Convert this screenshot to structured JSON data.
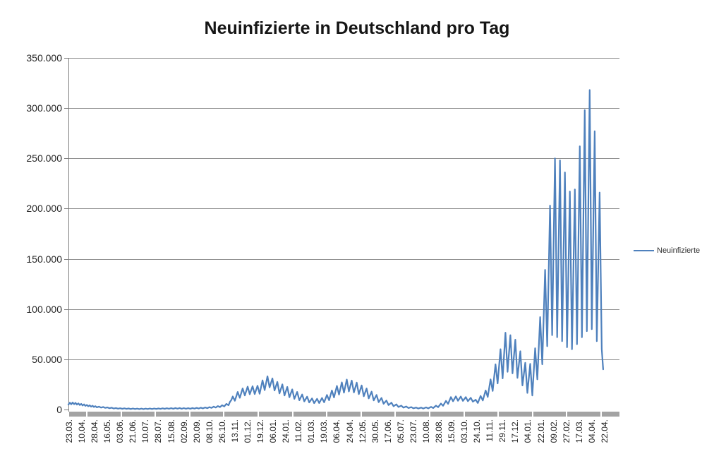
{
  "chart": {
    "title": "Neuinfizierte in Deutschland pro Tag",
    "legend": {
      "label": "Neuinfizierte"
    }
  },
  "chart_data": {
    "type": "line",
    "title": "Neuinfizierte in Deutschland pro Tag",
    "series_name": "Neuinfizierte",
    "xlabel": "",
    "ylabel": "",
    "ylim": [
      0,
      350000
    ],
    "grid": true,
    "legend_position": "right",
    "x_tick_step_days": 18,
    "axis_days": 778,
    "colors": {
      "line": "#4F81BD",
      "gridline": "#909090",
      "axis": "#808080",
      "axis_band": "#A3A3A3",
      "text": "#262626",
      "title_text": "#151515"
    },
    "y_ticks": [
      {
        "v": 0,
        "label": "0"
      },
      {
        "v": 50000,
        "label": "50.000"
      },
      {
        "v": 100000,
        "label": "100.000"
      },
      {
        "v": 150000,
        "label": "150.000"
      },
      {
        "v": 200000,
        "label": "200.000"
      },
      {
        "v": 250000,
        "label": "250.000"
      },
      {
        "v": 300000,
        "label": "300.000"
      },
      {
        "v": 350000,
        "label": "350.000"
      }
    ],
    "x_tick_labels": [
      "23.03.",
      "10.04.",
      "28.04.",
      "16.05.",
      "03.06.",
      "21.06.",
      "10.07.",
      "28.07.",
      "15.08.",
      "02.09.",
      "20.09.",
      "08.10.",
      "26.10.",
      "13.11.",
      "01.12.",
      "19.12.",
      "06.01.",
      "24.01.",
      "11.02.",
      "01.03.",
      "19.03.",
      "06.04.",
      "24.04.",
      "12.05.",
      "30.05.",
      "17.06.",
      "05.07.",
      "23.07.",
      "10.08.",
      "28.08.",
      "15.09.",
      "03.10.",
      "24.10.",
      "11.11.",
      "29.11.",
      "17.12.",
      "04.01.",
      "22.01.",
      "09.02.",
      "27.02.",
      "17.03.",
      "04.04.",
      "22.04."
    ],
    "points": [
      [
        0,
        5000
      ],
      [
        2,
        6800
      ],
      [
        4,
        5200
      ],
      [
        6,
        7000
      ],
      [
        8,
        5300
      ],
      [
        10,
        6600
      ],
      [
        12,
        4900
      ],
      [
        14,
        6100
      ],
      [
        16,
        4400
      ],
      [
        18,
        5600
      ],
      [
        20,
        4000
      ],
      [
        22,
        5100
      ],
      [
        24,
        3600
      ],
      [
        26,
        4600
      ],
      [
        28,
        3200
      ],
      [
        30,
        4200
      ],
      [
        32,
        2800
      ],
      [
        34,
        3800
      ],
      [
        36,
        2500
      ],
      [
        38,
        3400
      ],
      [
        40,
        2200
      ],
      [
        43,
        2900
      ],
      [
        46,
        1900
      ],
      [
        49,
        2500
      ],
      [
        52,
        1600
      ],
      [
        55,
        2100
      ],
      [
        58,
        1300
      ],
      [
        61,
        1800
      ],
      [
        64,
        1000
      ],
      [
        67,
        1500
      ],
      [
        70,
        850
      ],
      [
        73,
        1300
      ],
      [
        76,
        700
      ],
      [
        79,
        1200
      ],
      [
        82,
        600
      ],
      [
        85,
        1050
      ],
      [
        88,
        520
      ],
      [
        91,
        950
      ],
      [
        94,
        470
      ],
      [
        97,
        900
      ],
      [
        100,
        450
      ],
      [
        103,
        880
      ],
      [
        106,
        450
      ],
      [
        109,
        900
      ],
      [
        112,
        480
      ],
      [
        115,
        950
      ],
      [
        118,
        520
      ],
      [
        121,
        1000
      ],
      [
        124,
        570
      ],
      [
        127,
        1080
      ],
      [
        130,
        620
      ],
      [
        133,
        1160
      ],
      [
        136,
        680
      ],
      [
        139,
        1250
      ],
      [
        142,
        740
      ],
      [
        145,
        1350
      ],
      [
        148,
        800
      ],
      [
        151,
        1450
      ],
      [
        154,
        850
      ],
      [
        157,
        1500
      ],
      [
        160,
        800
      ],
      [
        163,
        1400
      ],
      [
        166,
        750
      ],
      [
        169,
        1350
      ],
      [
        172,
        800
      ],
      [
        175,
        1450
      ],
      [
        178,
        900
      ],
      [
        181,
        1600
      ],
      [
        184,
        1000
      ],
      [
        187,
        1800
      ],
      [
        190,
        1150
      ],
      [
        193,
        2050
      ],
      [
        196,
        1350
      ],
      [
        199,
        2400
      ],
      [
        202,
        1600
      ],
      [
        205,
        2850
      ],
      [
        208,
        1950
      ],
      [
        211,
        3450
      ],
      [
        214,
        2400
      ],
      [
        217,
        4300
      ],
      [
        220,
        3100
      ],
      [
        223,
        5600
      ],
      [
        226,
        4200
      ],
      [
        228,
        7600
      ],
      [
        230,
        9500
      ],
      [
        232,
        13000
      ],
      [
        235,
        8700
      ],
      [
        239,
        17500
      ],
      [
        242,
        11700
      ],
      [
        246,
        21000
      ],
      [
        249,
        14000
      ],
      [
        253,
        22800
      ],
      [
        256,
        15200
      ],
      [
        260,
        23200
      ],
      [
        263,
        15400
      ],
      [
        267,
        23600
      ],
      [
        270,
        15700
      ],
      [
        274,
        29000
      ],
      [
        277,
        19300
      ],
      [
        281,
        33000
      ],
      [
        284,
        22000
      ],
      [
        288,
        31000
      ],
      [
        291,
        19000
      ],
      [
        295,
        27500
      ],
      [
        298,
        16000
      ],
      [
        302,
        25000
      ],
      [
        305,
        14000
      ],
      [
        309,
        22500
      ],
      [
        312,
        12200
      ],
      [
        316,
        20000
      ],
      [
        319,
        10600
      ],
      [
        323,
        17500
      ],
      [
        326,
        9200
      ],
      [
        330,
        15000
      ],
      [
        333,
        8100
      ],
      [
        337,
        12800
      ],
      [
        340,
        7000
      ],
      [
        344,
        11000
      ],
      [
        347,
        6300
      ],
      [
        351,
        10700
      ],
      [
        354,
        6400
      ],
      [
        358,
        11500
      ],
      [
        361,
        7200
      ],
      [
        365,
        14500
      ],
      [
        368,
        9200
      ],
      [
        372,
        19000
      ],
      [
        375,
        12000
      ],
      [
        379,
        23500
      ],
      [
        382,
        14800
      ],
      [
        386,
        27000
      ],
      [
        389,
        16800
      ],
      [
        393,
        29800
      ],
      [
        396,
        18000
      ],
      [
        400,
        28800
      ],
      [
        403,
        17000
      ],
      [
        407,
        26800
      ],
      [
        410,
        15300
      ],
      [
        414,
        24000
      ],
      [
        417,
        13200
      ],
      [
        421,
        21000
      ],
      [
        424,
        11000
      ],
      [
        428,
        17800
      ],
      [
        431,
        9100
      ],
      [
        435,
        14500
      ],
      [
        438,
        7300
      ],
      [
        442,
        11500
      ],
      [
        445,
        5700
      ],
      [
        449,
        8900
      ],
      [
        452,
        4400
      ],
      [
        456,
        6800
      ],
      [
        459,
        3300
      ],
      [
        463,
        5100
      ],
      [
        466,
        2500
      ],
      [
        470,
        3900
      ],
      [
        473,
        1900
      ],
      [
        477,
        3000
      ],
      [
        480,
        1500
      ],
      [
        484,
        2400
      ],
      [
        487,
        1200
      ],
      [
        491,
        2000
      ],
      [
        494,
        1000
      ],
      [
        498,
        1900
      ],
      [
        501,
        1000
      ],
      [
        505,
        2100
      ],
      [
        508,
        1100
      ],
      [
        512,
        2700
      ],
      [
        515,
        1500
      ],
      [
        519,
        3900
      ],
      [
        522,
        2300
      ],
      [
        526,
        5900
      ],
      [
        529,
        3700
      ],
      [
        533,
        8600
      ],
      [
        536,
        5600
      ],
      [
        540,
        12400
      ],
      [
        543,
        8200
      ],
      [
        547,
        13100
      ],
      [
        550,
        8700
      ],
      [
        554,
        12900
      ],
      [
        557,
        8600
      ],
      [
        561,
        12400
      ],
      [
        564,
        8300
      ],
      [
        568,
        11700
      ],
      [
        571,
        7800
      ],
      [
        575,
        9800
      ],
      [
        578,
        6500
      ],
      [
        582,
        13500
      ],
      [
        585,
        9000
      ],
      [
        589,
        19000
      ],
      [
        592,
        12500
      ],
      [
        596,
        30000
      ],
      [
        599,
        18500
      ],
      [
        603,
        45000
      ],
      [
        606,
        26000
      ],
      [
        610,
        60000
      ],
      [
        613,
        31000
      ],
      [
        617,
        76500
      ],
      [
        620,
        37500
      ],
      [
        624,
        74000
      ],
      [
        627,
        36000
      ],
      [
        631,
        69500
      ],
      [
        634,
        31500
      ],
      [
        638,
        58000
      ],
      [
        641,
        24000
      ],
      [
        645,
        46500
      ],
      [
        648,
        16500
      ],
      [
        652,
        45500
      ],
      [
        655,
        14000
      ],
      [
        659,
        61000
      ],
      [
        662,
        30000
      ],
      [
        666,
        92000
      ],
      [
        669,
        45000
      ],
      [
        673,
        139000
      ],
      [
        676,
        63000
      ],
      [
        680,
        203000
      ],
      [
        683,
        74000
      ],
      [
        687,
        250000
      ],
      [
        690,
        72000
      ],
      [
        694,
        248000
      ],
      [
        697,
        68000
      ],
      [
        701,
        236000
      ],
      [
        704,
        62000
      ],
      [
        708,
        217000
      ],
      [
        711,
        60000
      ],
      [
        715,
        219000
      ],
      [
        718,
        65000
      ],
      [
        722,
        262000
      ],
      [
        725,
        72000
      ],
      [
        729,
        298000
      ],
      [
        732,
        78000
      ],
      [
        736,
        318000
      ],
      [
        739,
        80000
      ],
      [
        743,
        277000
      ],
      [
        746,
        68000
      ],
      [
        750,
        216000
      ],
      [
        753,
        60000
      ],
      [
        755,
        40000
      ]
    ]
  }
}
